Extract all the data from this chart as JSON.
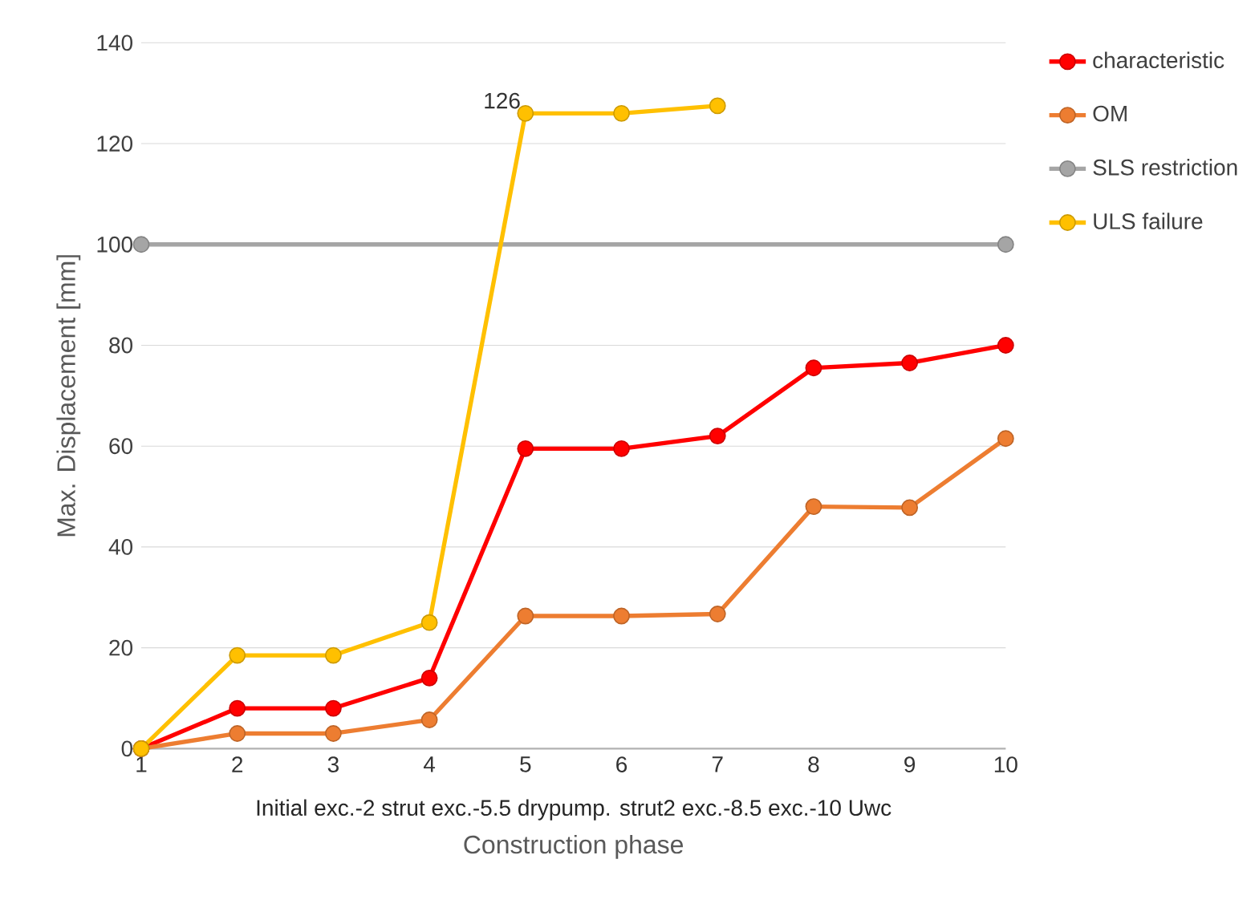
{
  "chart_data": {
    "type": "line",
    "xlabel": "Construction phase",
    "ylabel": "Max. Displacement [mm]",
    "categories": [
      "1",
      "2",
      "3",
      "4",
      "5",
      "6",
      "7",
      "8",
      "9",
      "10"
    ],
    "annotations": [
      "Initial  exc.-2  strut  exc.-5.5  drypump.  strut2  exc.-8.5  exc.-10  Uwc"
    ],
    "ylim": [
      0,
      140
    ],
    "yticks": [
      0,
      20,
      40,
      60,
      80,
      100,
      120,
      140
    ],
    "grid": "y",
    "legend": "right",
    "marker": "circle",
    "line_style": "solid",
    "series": [
      {
        "name": "characteristic",
        "color": "#ff0000",
        "values": [
          0,
          8,
          8,
          14,
          59.5,
          59.5,
          62,
          75.5,
          76.5,
          80
        ]
      },
      {
        "name": "OM",
        "color": "#ed7d31",
        "values": [
          0,
          3,
          3,
          5.7,
          26.3,
          26.3,
          26.7,
          48,
          47.8,
          61.5
        ]
      },
      {
        "name": "SLS restriction",
        "color": "#a5a5a5",
        "values": [
          100,
          null,
          null,
          null,
          null,
          null,
          null,
          null,
          null,
          100
        ]
      },
      {
        "name": "ULS failure",
        "color": "#ffc000",
        "values": [
          0,
          18.5,
          18.5,
          25,
          126,
          126,
          127.5,
          null,
          null,
          null
        ],
        "value_labels": [
          null,
          null,
          null,
          null,
          "126",
          null,
          null,
          null,
          null,
          null
        ]
      }
    ]
  }
}
